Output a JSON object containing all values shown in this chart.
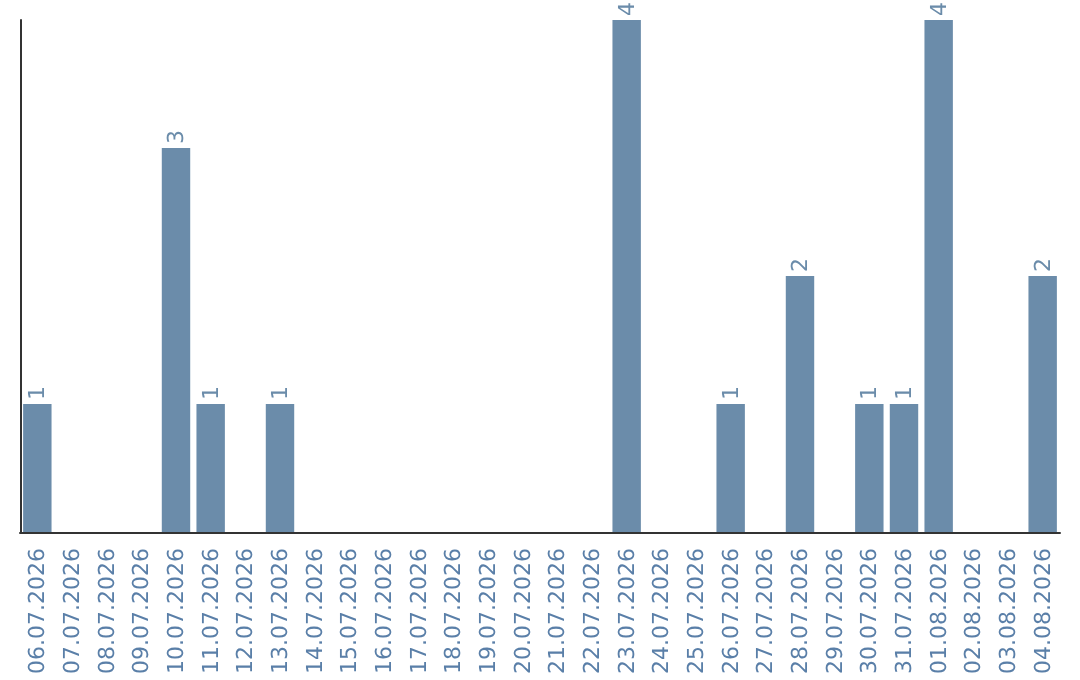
{
  "chart_data": {
    "type": "bar",
    "categories": [
      "06.07.2026",
      "07.07.2026",
      "08.07.2026",
      "09.07.2026",
      "10.07.2026",
      "11.07.2026",
      "12.07.2026",
      "13.07.2026",
      "14.07.2026",
      "15.07.2026",
      "16.07.2026",
      "17.07.2026",
      "18.07.2026",
      "19.07.2026",
      "20.07.2026",
      "21.07.2026",
      "22.07.2026",
      "23.07.2026",
      "24.07.2026",
      "25.07.2026",
      "26.07.2026",
      "27.07.2026",
      "28.07.2026",
      "29.07.2026",
      "30.07.2026",
      "31.07.2026",
      "01.08.2026",
      "02.08.2026",
      "03.08.2026",
      "04.08.2026"
    ],
    "values": [
      1,
      0,
      0,
      0,
      3,
      1,
      0,
      1,
      0,
      0,
      0,
      0,
      0,
      0,
      0,
      0,
      0,
      4,
      0,
      0,
      1,
      0,
      2,
      0,
      1,
      1,
      4,
      0,
      0,
      2
    ],
    "value_labels": [
      "1",
      null,
      null,
      null,
      "3",
      "1",
      null,
      "1",
      null,
      null,
      null,
      null,
      null,
      null,
      null,
      null,
      null,
      "4",
      null,
      null,
      "1",
      null,
      "2",
      null,
      "1",
      "1",
      "4",
      null,
      null,
      "2"
    ],
    "color": "#6b8caa",
    "tick_labels": "x"
  }
}
